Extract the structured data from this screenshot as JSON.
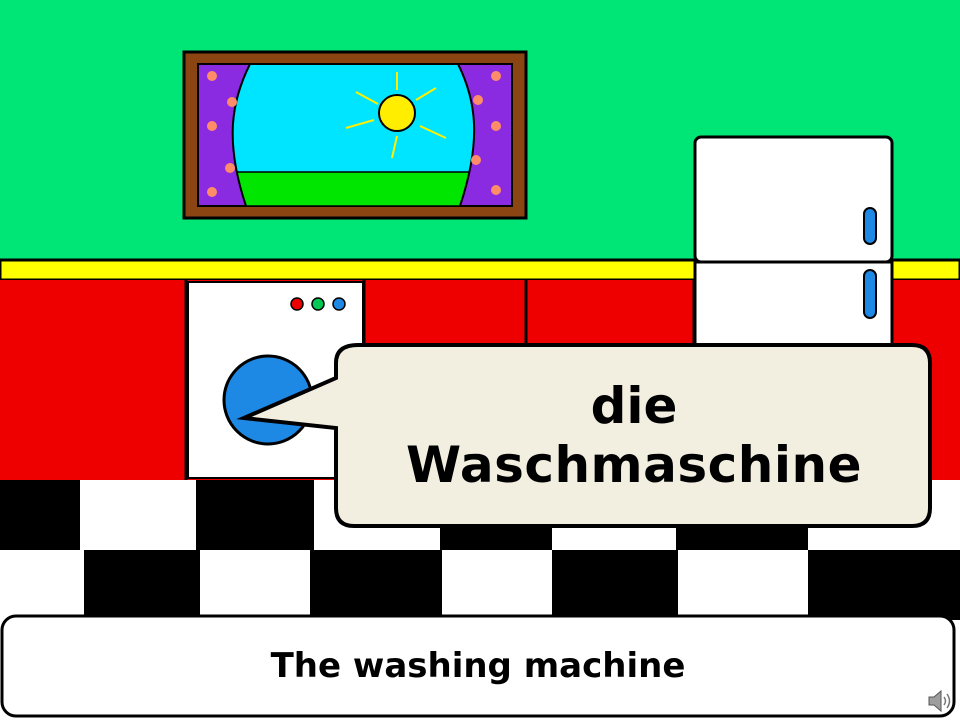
{
  "slide": {
    "word_article": "die",
    "word_noun": "Waschmaschine",
    "translation": "The washing machine"
  },
  "icons": {
    "audio": "speaker-icon"
  },
  "colors": {
    "wall": "#00e676",
    "trim": "#ffff00",
    "cabinets": "#ee0000",
    "sky": "#00e5ff",
    "grass": "#00e600",
    "sun": "#ffee00",
    "curtain": "#8a2be2",
    "frame": "#8b4513",
    "drum": "#1e88e5",
    "bubble": "#f2eee0"
  }
}
